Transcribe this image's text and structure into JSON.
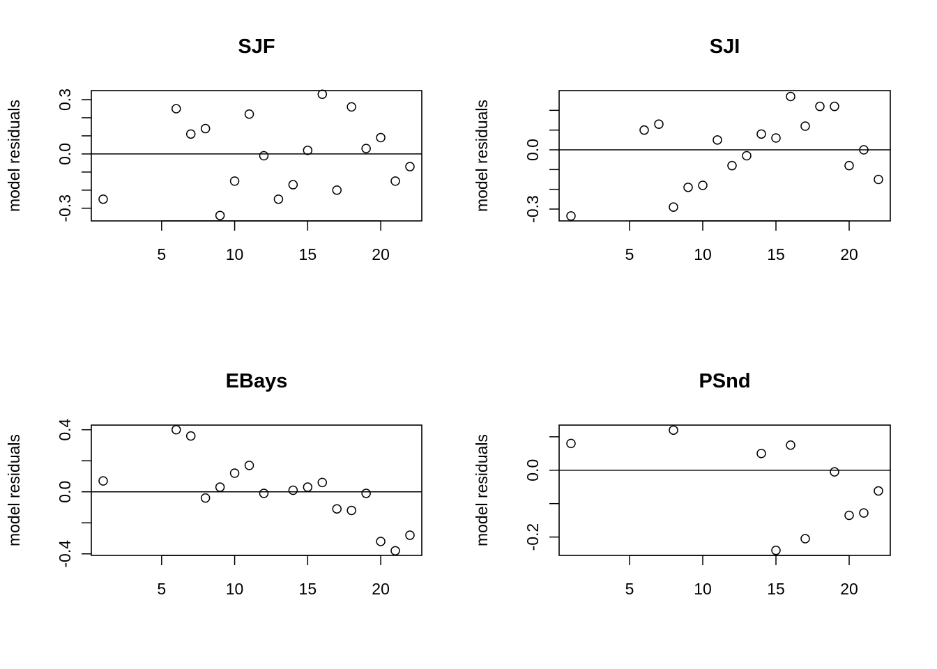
{
  "chart_data": [
    {
      "type": "scatter",
      "title": "SJF",
      "xlabel": "",
      "ylabel": "model residuals",
      "xlim": [
        1,
        22
      ],
      "ylim": [
        -0.37,
        0.35
      ],
      "xticks": [
        5,
        10,
        15,
        20
      ],
      "yticks": [
        -0.3,
        0.0,
        0.3
      ],
      "yminor": [
        -0.3,
        -0.2,
        -0.1,
        0.0,
        0.1,
        0.2,
        0.3
      ],
      "hline": 0,
      "grid": false,
      "points": [
        {
          "x": 1,
          "y": -0.25
        },
        {
          "x": 6,
          "y": 0.25
        },
        {
          "x": 7,
          "y": 0.11
        },
        {
          "x": 8,
          "y": 0.14
        },
        {
          "x": 9,
          "y": -0.34
        },
        {
          "x": 10,
          "y": -0.15
        },
        {
          "x": 11,
          "y": 0.22
        },
        {
          "x": 12,
          "y": -0.01
        },
        {
          "x": 13,
          "y": -0.25
        },
        {
          "x": 14,
          "y": -0.17
        },
        {
          "x": 15,
          "y": 0.02
        },
        {
          "x": 16,
          "y": 0.33
        },
        {
          "x": 17,
          "y": -0.2
        },
        {
          "x": 18,
          "y": 0.26
        },
        {
          "x": 19,
          "y": 0.03
        },
        {
          "x": 20,
          "y": 0.09
        },
        {
          "x": 21,
          "y": -0.15
        },
        {
          "x": 22,
          "y": -0.07
        }
      ]
    },
    {
      "type": "scatter",
      "title": "SJI",
      "xlabel": "",
      "ylabel": "model residuals",
      "xlim": [
        1,
        22
      ],
      "ylim": [
        -0.36,
        0.3
      ],
      "xticks": [
        5,
        10,
        15,
        20
      ],
      "yticks": [
        -0.3,
        0.0
      ],
      "yminor": [
        -0.3,
        -0.2,
        -0.1,
        0.0,
        0.1,
        0.2
      ],
      "hline": 0,
      "grid": false,
      "points": [
        {
          "x": 1,
          "y": -0.335
        },
        {
          "x": 6,
          "y": 0.1
        },
        {
          "x": 7,
          "y": 0.13
        },
        {
          "x": 8,
          "y": -0.29
        },
        {
          "x": 9,
          "y": -0.19
        },
        {
          "x": 10,
          "y": -0.18
        },
        {
          "x": 11,
          "y": 0.05
        },
        {
          "x": 12,
          "y": -0.08
        },
        {
          "x": 13,
          "y": -0.03
        },
        {
          "x": 14,
          "y": 0.08
        },
        {
          "x": 15,
          "y": 0.06
        },
        {
          "x": 16,
          "y": 0.27
        },
        {
          "x": 17,
          "y": 0.12
        },
        {
          "x": 18,
          "y": 0.22
        },
        {
          "x": 19,
          "y": 0.22
        },
        {
          "x": 20,
          "y": -0.08
        },
        {
          "x": 21,
          "y": 0.0
        },
        {
          "x": 22,
          "y": -0.15
        }
      ]
    },
    {
      "type": "scatter",
      "title": "EBays",
      "xlabel": "",
      "ylabel": "model residuals",
      "xlim": [
        1,
        22
      ],
      "ylim": [
        -0.41,
        0.43
      ],
      "xticks": [
        5,
        10,
        15,
        20
      ],
      "yticks": [
        -0.4,
        0.0,
        0.4
      ],
      "yminor": [
        -0.4,
        -0.2,
        0.0,
        0.2,
        0.4
      ],
      "hline": 0,
      "grid": false,
      "points": [
        {
          "x": 1,
          "y": 0.07
        },
        {
          "x": 6,
          "y": 0.4
        },
        {
          "x": 7,
          "y": 0.36
        },
        {
          "x": 8,
          "y": -0.04
        },
        {
          "x": 9,
          "y": 0.03
        },
        {
          "x": 10,
          "y": 0.12
        },
        {
          "x": 11,
          "y": 0.17
        },
        {
          "x": 12,
          "y": -0.01
        },
        {
          "x": 14,
          "y": 0.01
        },
        {
          "x": 15,
          "y": 0.03
        },
        {
          "x": 16,
          "y": 0.06
        },
        {
          "x": 17,
          "y": -0.11
        },
        {
          "x": 18,
          "y": -0.12
        },
        {
          "x": 19,
          "y": -0.01
        },
        {
          "x": 20,
          "y": -0.32
        },
        {
          "x": 21,
          "y": -0.38
        },
        {
          "x": 22,
          "y": -0.28
        }
      ]
    },
    {
      "type": "scatter",
      "title": "PSnd",
      "xlabel": "",
      "ylabel": "model residuals",
      "xlim": [
        1,
        22
      ],
      "ylim": [
        -0.255,
        0.135
      ],
      "xticks": [
        5,
        10,
        15,
        20
      ],
      "yticks": [
        -0.2,
        0.0
      ],
      "yminor": [
        -0.2,
        -0.1,
        0.0,
        0.1
      ],
      "hline": 0,
      "grid": false,
      "points": [
        {
          "x": 1,
          "y": 0.08
        },
        {
          "x": 8,
          "y": 0.12
        },
        {
          "x": 14,
          "y": 0.05
        },
        {
          "x": 15,
          "y": -0.24
        },
        {
          "x": 16,
          "y": 0.075
        },
        {
          "x": 17,
          "y": -0.205
        },
        {
          "x": 19,
          "y": -0.005
        },
        {
          "x": 20,
          "y": -0.135
        },
        {
          "x": 21,
          "y": -0.128
        },
        {
          "x": 22,
          "y": -0.062
        }
      ]
    }
  ]
}
